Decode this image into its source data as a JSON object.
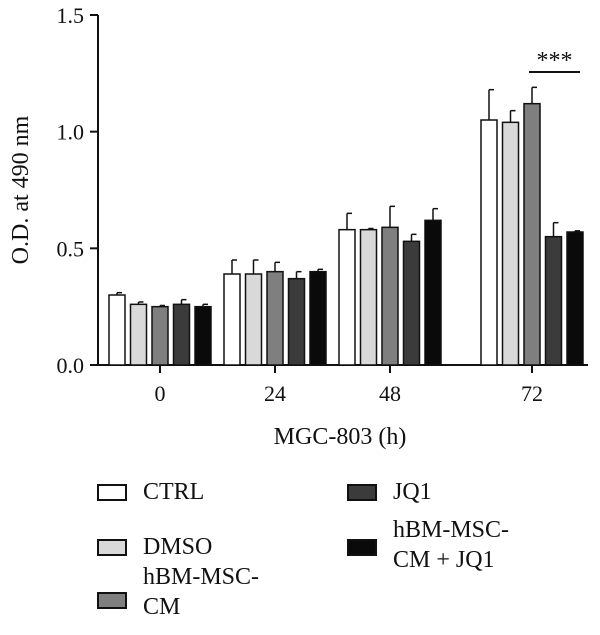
{
  "chart_data": {
    "type": "bar",
    "title": "",
    "xlabel": "MGC-803 (h)",
    "ylabel": "O.D. at 490 nm",
    "ylim": [
      0,
      1.5
    ],
    "yticks": [
      "0.0",
      "0.5",
      "1.0",
      "1.5"
    ],
    "categories": [
      "0",
      "24",
      "48",
      "72"
    ],
    "grid": false,
    "legend_position": "bottom",
    "series": [
      {
        "name": "CTRL",
        "color": "#ffffff",
        "values": [
          0.3,
          0.39,
          0.58,
          1.05
        ],
        "errors": [
          0.01,
          0.06,
          0.07,
          0.13
        ]
      },
      {
        "name": "DMSO",
        "color": "#d9d9d9",
        "values": [
          0.26,
          0.39,
          0.58,
          1.04
        ],
        "errors": [
          0.01,
          0.06,
          0.005,
          0.05
        ]
      },
      {
        "name": "hBM-MSC-\nCM",
        "color": "#7f7f7f",
        "values": [
          0.25,
          0.4,
          0.59,
          1.12
        ],
        "errors": [
          0.005,
          0.04,
          0.09,
          0.07
        ]
      },
      {
        "name": "JQ1",
        "color": "#3b3b3b",
        "values": [
          0.26,
          0.37,
          0.53,
          0.55
        ],
        "errors": [
          0.02,
          0.03,
          0.03,
          0.06
        ]
      },
      {
        "name": "hBM-MSC-\nCM + JQ1",
        "color": "#0a0a0a",
        "values": [
          0.25,
          0.4,
          0.62,
          0.57
        ],
        "errors": [
          0.01,
          0.01,
          0.05,
          0.005
        ]
      }
    ],
    "annotations": [
      {
        "text": "***",
        "category": "72",
        "between_series": [
          "hBM-MSC-\nCM",
          "hBM-MSC-\nCM + JQ1"
        ]
      }
    ]
  }
}
